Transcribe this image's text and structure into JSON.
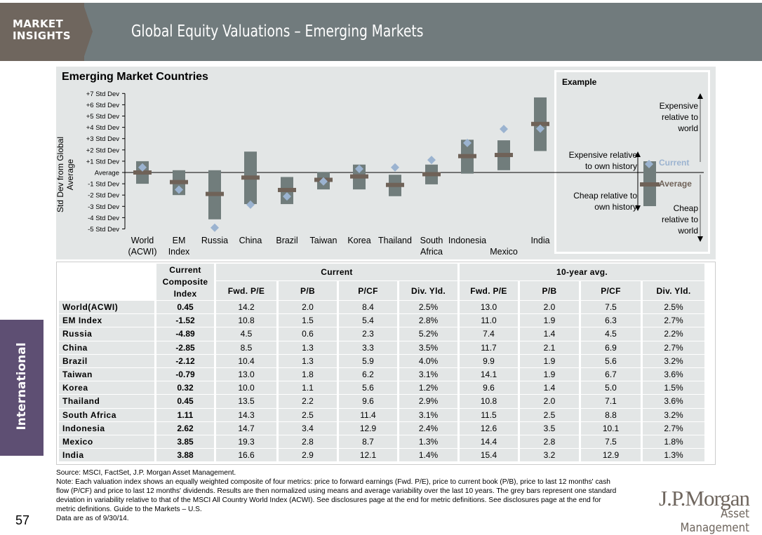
{
  "header": {
    "brand": "MARKET INSIGHTS",
    "title": "Global Equity Valuations – Emerging Markets"
  },
  "side_tab": "International",
  "page_number": "57",
  "chart_data": {
    "type": "range-bar with markers",
    "title": "Emerging Market Countries",
    "ylabel": "Std Dev from Global Average",
    "ylim": [
      -5,
      7
    ],
    "yticks": [
      "+7 Std Dev",
      "+6 Std Dev",
      "+5 Std Dev",
      "+4 Std Dev",
      "+3 Std Dev",
      "+2 Std Dev",
      "+1 Std Dev",
      "Average",
      "-1 Std Dev",
      "-2 Std Dev",
      "-3 Std Dev",
      "-4 Std Dev",
      "-5 Std Dev"
    ],
    "categories": [
      [
        "World",
        "(ACWI)"
      ],
      [
        "EM",
        "Index"
      ],
      [
        "Russia"
      ],
      [
        "China"
      ],
      [
        "Brazil"
      ],
      [
        "Taiwan"
      ],
      [
        "Korea"
      ],
      [
        "Thailand"
      ],
      [
        "South",
        "Africa"
      ],
      [
        "Indonesia"
      ],
      [
        "",
        "Mexico"
      ],
      [
        "India"
      ]
    ],
    "range_low": [
      -1.0,
      -2.0,
      -4.15,
      -2.8,
      -2.8,
      -1.5,
      -1.5,
      -2.1,
      -1.05,
      -0.1,
      0.2,
      1.9
    ],
    "range_high": [
      1.0,
      0.2,
      0.2,
      1.85,
      -0.4,
      0.05,
      0.7,
      -0.2,
      0.7,
      2.9,
      2.85,
      6.65
    ],
    "average": [
      0.0,
      -0.85,
      -1.9,
      -0.45,
      -1.55,
      -0.65,
      -0.35,
      -1.1,
      -0.15,
      1.45,
      1.55,
      4.3
    ],
    "current": [
      0.45,
      -1.52,
      -4.89,
      -2.85,
      -2.12,
      -0.79,
      0.32,
      0.45,
      1.11,
      2.62,
      3.85,
      3.88
    ],
    "colors": {
      "bar": "#717d7c",
      "average": "#6f6258",
      "current": "#9bb3d0"
    },
    "example": {
      "title": "Example",
      "exp_world": "Expensive relative to world",
      "exp_own": "Expensive relative to own history",
      "cheap_own": "Cheap relative to own history",
      "cheap_world": "Cheap relative to world",
      "current": "Current",
      "average": "Average"
    }
  },
  "table": {
    "col_composite": "Current Composite Index",
    "group_current": "Current",
    "group_avg": "10-year avg.",
    "metrics": [
      "Fwd. P/E",
      "P/B",
      "P/CF",
      "Div. Yld.",
      "Fwd. P/E",
      "P/B",
      "P/CF",
      "Div. Yld."
    ],
    "rows": [
      [
        "World(ACWI)",
        "0.45",
        "14.2",
        "2.0",
        "8.4",
        "2.5%",
        "13.0",
        "2.0",
        "7.5",
        "2.5%"
      ],
      [
        "EM Index",
        "-1.52",
        "10.8",
        "1.5",
        "5.4",
        "2.8%",
        "11.0",
        "1.9",
        "6.3",
        "2.7%"
      ],
      [
        "Russia",
        "-4.89",
        "4.5",
        "0.6",
        "2.3",
        "5.2%",
        "7.4",
        "1.4",
        "4.5",
        "2.2%"
      ],
      [
        "China",
        "-2.85",
        "8.5",
        "1.3",
        "3.3",
        "3.5%",
        "11.7",
        "2.1",
        "6.9",
        "2.7%"
      ],
      [
        "Brazil",
        "-2.12",
        "10.4",
        "1.3",
        "5.9",
        "4.0%",
        "9.9",
        "1.9",
        "5.6",
        "3.2%"
      ],
      [
        "Taiwan",
        "-0.79",
        "13.0",
        "1.8",
        "6.2",
        "3.1%",
        "14.1",
        "1.9",
        "6.7",
        "3.6%"
      ],
      [
        "Korea",
        "0.32",
        "10.0",
        "1.1",
        "5.6",
        "1.2%",
        "9.6",
        "1.4",
        "5.0",
        "1.5%"
      ],
      [
        "Thailand",
        "0.45",
        "13.5",
        "2.2",
        "9.6",
        "2.9%",
        "10.8",
        "2.0",
        "7.1",
        "3.6%"
      ],
      [
        "South Africa",
        "1.11",
        "14.3",
        "2.5",
        "11.4",
        "3.1%",
        "11.5",
        "2.5",
        "8.8",
        "3.2%"
      ],
      [
        "Indonesia",
        "2.62",
        "14.7",
        "3.4",
        "12.9",
        "2.4%",
        "12.6",
        "3.5",
        "10.1",
        "2.7%"
      ],
      [
        "Mexico",
        "3.85",
        "19.3",
        "2.8",
        "8.7",
        "1.3%",
        "14.4",
        "2.8",
        "7.5",
        "1.8%"
      ],
      [
        "India",
        "3.88",
        "16.6",
        "2.9",
        "12.1",
        "1.4%",
        "15.4",
        "3.2",
        "12.9",
        "1.3%"
      ]
    ]
  },
  "footer": {
    "source": "Source: MSCI, FactSet, J.P. Morgan Asset Management.",
    "note": "Note: Each valuation index shows an equally weighted composite of four metrics: price to forward earnings (Fwd. P/E), price to current book (P/B), price to last 12 months' cash flow (P/CF) and price to last 12 months' dividends. Results are then normalized using means and average variability over the last 10 years. The grey bars represent one standard deviation in variability relative to that of the MSCI All Country World Index (ACWI). See disclosures page at the end for metric definitions. See disclosures page at the end for metric definitions. Guide to the Markets – U.S.",
    "date": "Data are as of 9/30/14."
  },
  "logo": {
    "line1": "J.P.Morgan",
    "line2": "Asset Management"
  }
}
